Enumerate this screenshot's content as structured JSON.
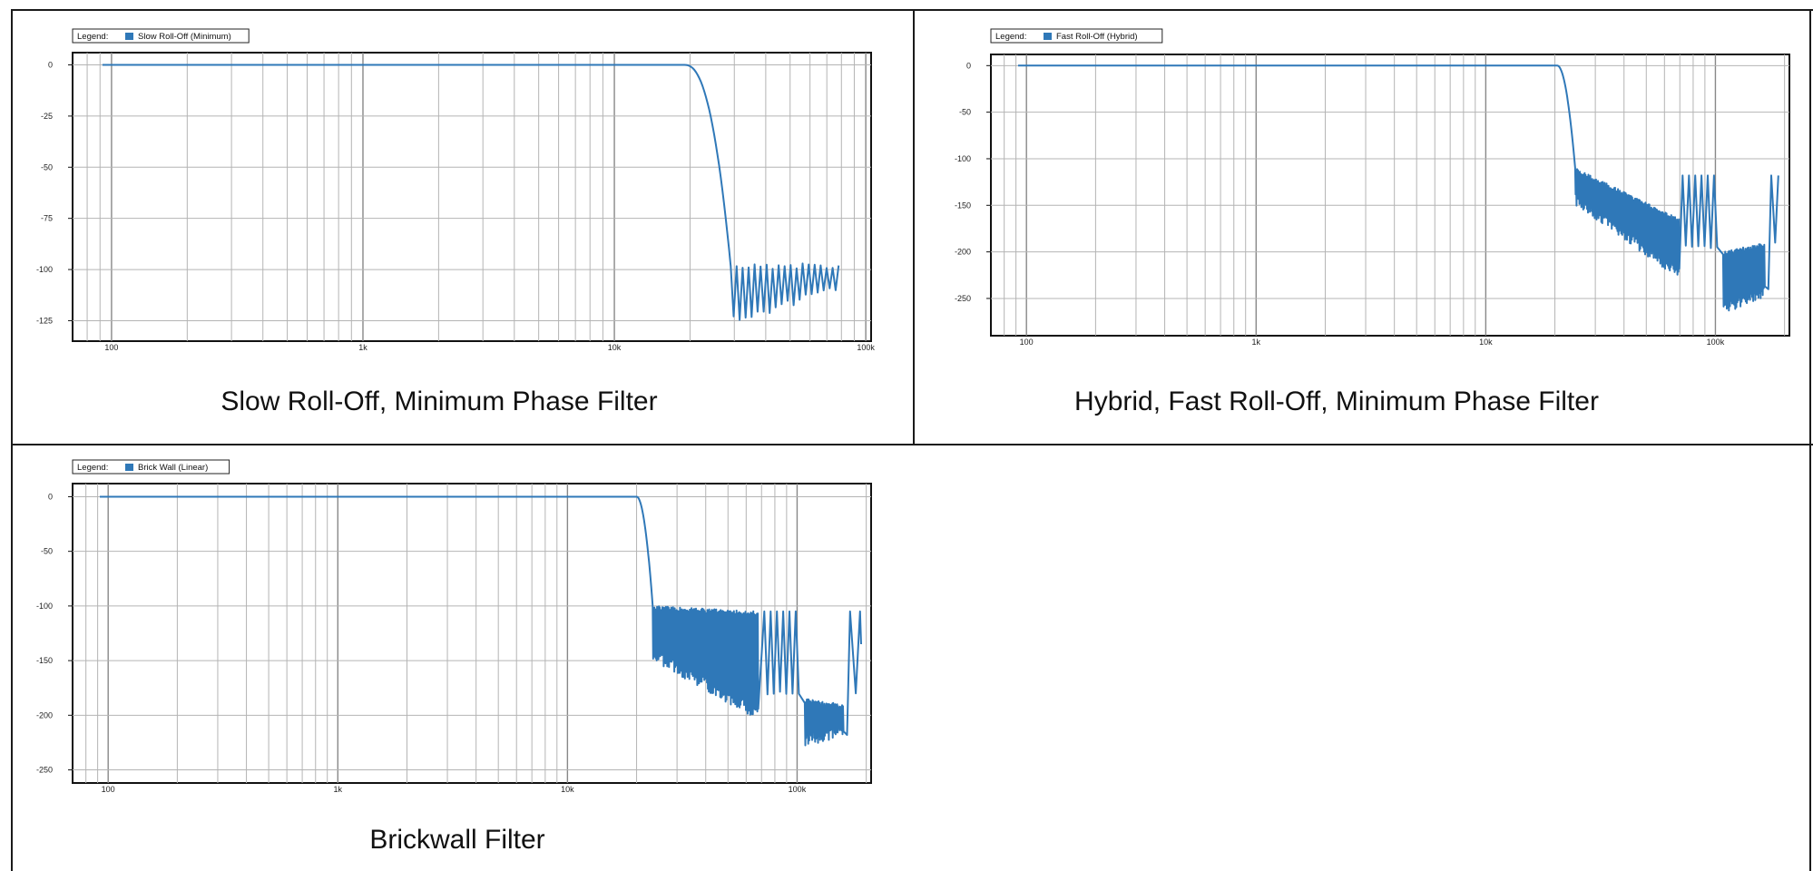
{
  "chart_data": [
    {
      "type": "line",
      "caption": "Slow Roll-Off, Minimum Phase Filter",
      "legend_prefix": "Legend:",
      "series": [
        {
          "name": "Slow Roll-Off (Minimum)",
          "color": "#2f78b8"
        }
      ],
      "legend_position": "top-left",
      "x_scale": "log",
      "xlim": [
        70,
        105000
      ],
      "x_ticks": [
        {
          "v": 100,
          "label": "100"
        },
        {
          "v": 1000,
          "label": "1k"
        },
        {
          "v": 10000,
          "label": "10k"
        },
        {
          "v": 100000,
          "label": "100k"
        }
      ],
      "ylim": [
        -135,
        6
      ],
      "y_ticks": [
        {
          "v": 0,
          "label": "0"
        },
        {
          "v": -25,
          "label": "-25"
        },
        {
          "v": -50,
          "label": "-50"
        },
        {
          "v": -75,
          "label": "-75"
        },
        {
          "v": -100,
          "label": "-100"
        },
        {
          "v": -125,
          "label": "-125"
        }
      ],
      "grid": true,
      "knee_x": 19000,
      "stop_x": 29000,
      "end_x": 78000,
      "floor_top": [
        -97,
        -100
      ],
      "floor_bottom": [
        -127,
        -110
      ]
    },
    {
      "type": "line",
      "caption": "Hybrid, Fast Roll-Off, Minimum Phase Filter",
      "legend_prefix": "Legend:",
      "series": [
        {
          "name": "Fast Roll-Off (Hybrid)",
          "color": "#2f78b8"
        }
      ],
      "legend_position": "top-left",
      "x_scale": "log",
      "xlim": [
        70,
        210000
      ],
      "x_ticks": [
        {
          "v": 100,
          "label": "100"
        },
        {
          "v": 1000,
          "label": "1k"
        },
        {
          "v": 10000,
          "label": "10k"
        },
        {
          "v": 100000,
          "label": "100k"
        }
      ],
      "ylim": [
        -290,
        12
      ],
      "y_ticks": [
        {
          "v": 0,
          "label": "0"
        },
        {
          "v": -50,
          "label": "-50"
        },
        {
          "v": -100,
          "label": "-100"
        },
        {
          "v": -150,
          "label": "-150"
        },
        {
          "v": -200,
          "label": "-200"
        },
        {
          "v": -250,
          "label": "-250"
        }
      ],
      "grid": true,
      "knee_x": 20500,
      "stop_x": 24500,
      "end_x": 190000
    },
    {
      "type": "line",
      "caption": "Brickwall Filter",
      "legend_prefix": "Legend:",
      "series": [
        {
          "name": "Brick Wall (Linear)",
          "color": "#2f78b8"
        }
      ],
      "legend_position": "top-left",
      "x_scale": "log",
      "xlim": [
        70,
        210000
      ],
      "x_ticks": [
        {
          "v": 100,
          "label": "100"
        },
        {
          "v": 1000,
          "label": "1k"
        },
        {
          "v": 10000,
          "label": "10k"
        },
        {
          "v": 100000,
          "label": "100k"
        }
      ],
      "ylim": [
        -262,
        12
      ],
      "y_ticks": [
        {
          "v": 0,
          "label": "0"
        },
        {
          "v": -50,
          "label": "-50"
        },
        {
          "v": -100,
          "label": "-100"
        },
        {
          "v": -150,
          "label": "-150"
        },
        {
          "v": -200,
          "label": "-200"
        },
        {
          "v": -250,
          "label": "-250"
        }
      ],
      "grid": true,
      "knee_x": 20000,
      "stop_x": 23500,
      "end_x": 190000
    }
  ]
}
